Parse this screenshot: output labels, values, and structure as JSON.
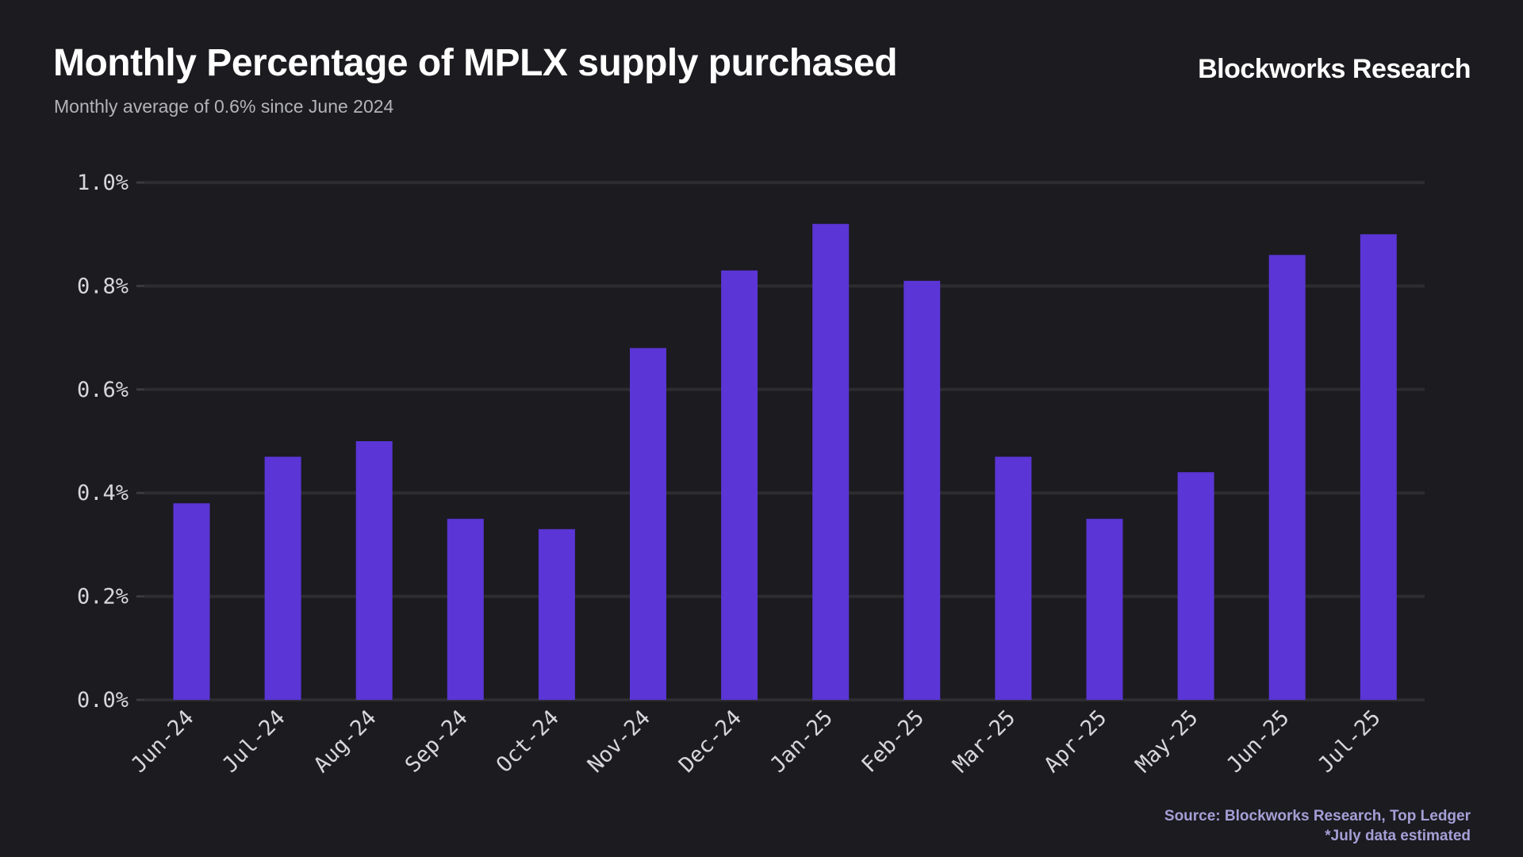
{
  "header": {
    "title": "Monthly Percentage of MPLX supply purchased",
    "subtitle": "Monthly average of 0.6% since June 2024",
    "brand": "Blockworks Research"
  },
  "footer": {
    "source": "Source: Blockworks Research, Top Ledger",
    "note": "*July data estimated"
  },
  "colors": {
    "background": "#1b1b20",
    "bar": "#5b35d5",
    "grid": "#2c2c31"
  },
  "chart_data": {
    "type": "bar",
    "title": "Monthly Percentage of MPLX supply purchased",
    "subtitle": "Monthly average of 0.6% since June 2024",
    "xlabel": "",
    "ylabel": "",
    "categories": [
      "Jun-24",
      "Jul-24",
      "Aug-24",
      "Sep-24",
      "Oct-24",
      "Nov-24",
      "Dec-24",
      "Jan-25",
      "Feb-25",
      "Mar-25",
      "Apr-25",
      "May-25",
      "Jun-25",
      "Jul-25"
    ],
    "values": [
      0.38,
      0.47,
      0.5,
      0.35,
      0.33,
      0.68,
      0.83,
      0.92,
      0.81,
      0.47,
      0.35,
      0.44,
      0.86,
      0.9
    ],
    "unit": "%",
    "ylim": [
      0,
      1.0
    ],
    "yticks": [
      "0.0%",
      "0.2%",
      "0.4%",
      "0.6%",
      "0.8%",
      "1.0%"
    ],
    "grid": true,
    "legend": "none"
  }
}
